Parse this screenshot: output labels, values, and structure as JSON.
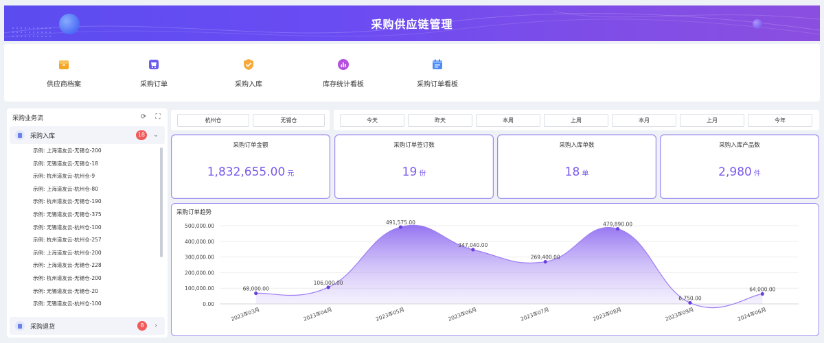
{
  "header": {
    "title": "采购供应链管理"
  },
  "quick_nav": [
    {
      "label": "供应商档案",
      "icon": "folder-icon",
      "color": "#f6a623"
    },
    {
      "label": "采购订单",
      "icon": "cart-icon",
      "color": "#6b5cf0"
    },
    {
      "label": "采购入库",
      "icon": "shield-check-icon",
      "color": "#f7a93b"
    },
    {
      "label": "库存统计看板",
      "icon": "bar-chart-icon",
      "color": "#b44fe0"
    },
    {
      "label": "采购订单看板",
      "icon": "calendar-icon",
      "color": "#4f8cf5"
    }
  ],
  "sidebar": {
    "title": "采购业务流",
    "groups": [
      {
        "label": "采购入库",
        "count": "18",
        "expanded": true,
        "items": [
          "示例: 上海道友云-无锡仓-200",
          "示例: 无锡道友云-无锡仓-18",
          "示例: 杭州道友云-杭州仓-9",
          "示例: 上海道友云-杭州仓-80",
          "示例: 杭州道友云-无锡仓-190",
          "示例: 无锡道友云-无锡仓-375",
          "示例: 无锡道友云-杭州仓-100",
          "示例: 杭州道友云-杭州仓-257",
          "示例: 上海道友云-杭州仓-200",
          "示例: 上海道友云-无锡仓-228",
          "示例: 杭州道友云-无锡仓-200",
          "示例: 无锡道友云-无锡仓-20",
          "示例: 无锡道友云-杭州仓-100"
        ]
      },
      {
        "label": "采购退货",
        "count": "8",
        "expanded": false
      }
    ]
  },
  "filters": {
    "warehouses": [
      "杭州仓",
      "无锡仓"
    ],
    "periods": [
      "今天",
      "昨天",
      "本周",
      "上周",
      "本月",
      "上月",
      "今年"
    ]
  },
  "stats": [
    {
      "title": "采购订单金额",
      "value": "1,832,655.00",
      "unit": "元"
    },
    {
      "title": "采购订单签订数",
      "value": "19",
      "unit": "份"
    },
    {
      "title": "采购入库单数",
      "value": "18",
      "unit": "单"
    },
    {
      "title": "采购入库产品数",
      "value": "2,980",
      "unit": "件"
    }
  ],
  "chart_data": {
    "type": "area",
    "title": "采购订单趋势",
    "categories": [
      "2023年03月",
      "2023年04月",
      "2023年05月",
      "2023年06月",
      "2023年07月",
      "2023年08月",
      "2023年09月",
      "2024年06月"
    ],
    "values": [
      68000,
      106000,
      491575,
      347040,
      269400,
      479890,
      6750,
      64000
    ],
    "value_labels": [
      "68,000.00",
      "106,000.00",
      "491,575.00",
      "347,040.00",
      "269,400.00",
      "479,890.00",
      "6,750.00",
      "64,000.00"
    ],
    "y_ticks": [
      "0.00",
      "100,000.00",
      "200,000.00",
      "300,000.00",
      "400,000.00",
      "500,000.00"
    ],
    "ylim": [
      0,
      500000
    ],
    "grid": true,
    "color": "#9c7cf2"
  }
}
